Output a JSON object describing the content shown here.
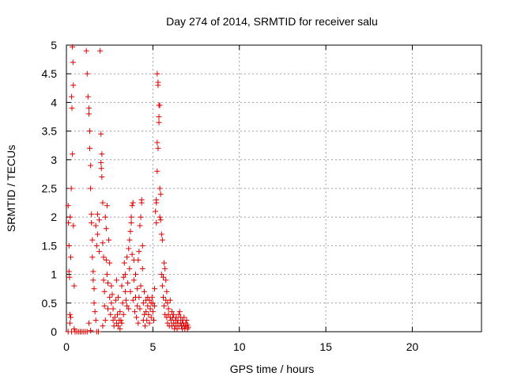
{
  "chart_data": {
    "type": "scatter",
    "title": "Day 274 of 2014, SRMTID for receiver salu",
    "xlabel": "GPS time / hours",
    "ylabel": "SRMTID / TECUs",
    "xlim": [
      0,
      24
    ],
    "ylim": [
      0,
      5
    ],
    "xticks": [
      0,
      5,
      10,
      15,
      20
    ],
    "xtick_labels": [
      "0",
      "5",
      "10",
      "15",
      "20"
    ],
    "yticks": [
      0,
      0.5,
      1,
      1.5,
      2,
      2.5,
      3,
      3.5,
      4,
      4.5,
      5
    ],
    "ytick_labels": [
      "0",
      "0.5",
      "1",
      "1.5",
      "2",
      "2.5",
      "3",
      "3.5",
      "4",
      "4.5",
      "5"
    ],
    "grid": true,
    "marker": "+",
    "series": [
      {
        "name": "salu",
        "color": "#e00000",
        "points": [
          [
            0.1,
            2.2
          ],
          [
            0.12,
            1.9
          ],
          [
            0.15,
            1.5
          ],
          [
            0.15,
            1.05
          ],
          [
            0.18,
            0.95
          ],
          [
            0.2,
            0.3
          ],
          [
            0.2,
            0.15
          ],
          [
            0.22,
            2.0
          ],
          [
            0.25,
            1.3
          ],
          [
            0.25,
            0.25
          ],
          [
            0.28,
            2.5
          ],
          [
            0.3,
            4.1
          ],
          [
            0.32,
            3.9
          ],
          [
            0.35,
            4.97
          ],
          [
            0.35,
            3.1
          ],
          [
            0.38,
            4.7
          ],
          [
            0.4,
            4.3
          ],
          [
            0.4,
            1.85
          ],
          [
            0.45,
            0.8
          ],
          [
            0.45,
            0.05
          ],
          [
            0.1,
            0.0
          ],
          [
            0.3,
            0.0
          ],
          [
            0.5,
            0.0
          ],
          [
            0.6,
            0.0
          ],
          [
            0.7,
            0.0
          ],
          [
            0.8,
            0.0
          ],
          [
            0.9,
            0.0
          ],
          [
            1.0,
            0.0
          ],
          [
            1.1,
            0.0
          ],
          [
            1.2,
            0.0
          ],
          [
            1.75,
            0.0
          ],
          [
            1.85,
            0.0
          ],
          [
            1.15,
            4.9
          ],
          [
            1.2,
            4.5
          ],
          [
            1.25,
            4.1
          ],
          [
            1.3,
            3.9
          ],
          [
            1.3,
            3.8
          ],
          [
            1.35,
            3.5
          ],
          [
            1.35,
            3.2
          ],
          [
            1.4,
            2.9
          ],
          [
            1.4,
            2.5
          ],
          [
            1.45,
            2.05
          ],
          [
            1.45,
            1.9
          ],
          [
            1.5,
            1.6
          ],
          [
            1.5,
            1.3
          ],
          [
            1.55,
            1.05
          ],
          [
            1.55,
            0.9
          ],
          [
            1.6,
            0.75
          ],
          [
            1.6,
            0.5
          ],
          [
            1.65,
            0.35
          ],
          [
            1.7,
            0.2
          ],
          [
            1.3,
            0.15
          ],
          [
            1.4,
            0.02
          ],
          [
            1.7,
            1.85
          ],
          [
            1.75,
            1.5
          ],
          [
            1.8,
            1.7
          ],
          [
            1.8,
            2.05
          ],
          [
            1.9,
            1.95
          ],
          [
            1.9,
            1.4
          ],
          [
            1.95,
            4.9
          ],
          [
            2.0,
            3.45
          ],
          [
            2.0,
            2.95
          ],
          [
            2.02,
            2.85
          ],
          [
            2.05,
            2.7
          ],
          [
            2.05,
            3.1
          ],
          [
            2.1,
            2.25
          ],
          [
            2.1,
            1.55
          ],
          [
            2.15,
            1.3
          ],
          [
            2.15,
            0.9
          ],
          [
            2.2,
            0.7
          ],
          [
            2.2,
            0.45
          ],
          [
            2.25,
            0.2
          ],
          [
            2.1,
            0.1
          ],
          [
            2.25,
            2.0
          ],
          [
            2.3,
            1.8
          ],
          [
            2.3,
            1.25
          ],
          [
            2.35,
            2.2
          ],
          [
            2.35,
            1.0
          ],
          [
            2.4,
            0.85
          ],
          [
            2.4,
            0.4
          ],
          [
            2.45,
            1.6
          ],
          [
            2.5,
            1.2
          ],
          [
            2.5,
            0.6
          ],
          [
            2.55,
            0.3
          ],
          [
            2.6,
            0.5
          ],
          [
            2.6,
            0.8
          ],
          [
            2.65,
            0.65
          ],
          [
            2.7,
            0.4
          ],
          [
            2.7,
            0.2
          ],
          [
            2.75,
            0.1
          ],
          [
            2.8,
            0.25
          ],
          [
            2.85,
            0.55
          ],
          [
            2.9,
            0.9
          ],
          [
            2.9,
            0.15
          ],
          [
            2.95,
            0.3
          ],
          [
            3.0,
            0.1
          ],
          [
            3.0,
            0.6
          ],
          [
            3.05,
            0.2
          ],
          [
            3.1,
            0.05
          ],
          [
            3.1,
            0.35
          ],
          [
            3.15,
            0.2
          ],
          [
            3.2,
            0.15
          ],
          [
            3.2,
            0.8
          ],
          [
            3.25,
            0.5
          ],
          [
            3.3,
            0.3
          ],
          [
            3.3,
            0.95
          ],
          [
            3.35,
            1.2
          ],
          [
            3.4,
            0.7
          ],
          [
            3.4,
            1.0
          ],
          [
            3.45,
            0.55
          ],
          [
            3.5,
            1.3
          ],
          [
            3.5,
            0.45
          ],
          [
            3.55,
            0.85
          ],
          [
            3.6,
            1.45
          ],
          [
            3.6,
            0.4
          ],
          [
            3.65,
            1.6
          ],
          [
            3.65,
            1.1
          ],
          [
            3.7,
            1.75
          ],
          [
            3.7,
            0.7
          ],
          [
            3.75,
            2.0
          ],
          [
            3.75,
            1.9
          ],
          [
            3.8,
            2.2
          ],
          [
            3.8,
            1.35
          ],
          [
            3.85,
            2.25
          ],
          [
            3.85,
            0.55
          ],
          [
            3.9,
            1.25
          ],
          [
            3.9,
            0.9
          ],
          [
            3.95,
            0.35
          ],
          [
            4.0,
            0.6
          ],
          [
            4.0,
            1.0
          ],
          [
            4.05,
            0.25
          ],
          [
            4.1,
            0.75
          ],
          [
            4.1,
            0.45
          ],
          [
            4.15,
            1.25
          ],
          [
            4.15,
            0.15
          ],
          [
            4.2,
            1.4
          ],
          [
            4.2,
            0.6
          ],
          [
            4.25,
            1.85
          ],
          [
            4.25,
            0.4
          ],
          [
            4.3,
            2.0
          ],
          [
            4.3,
            0.8
          ],
          [
            4.35,
            2.25
          ],
          [
            4.35,
            2.3
          ],
          [
            4.4,
            1.5
          ],
          [
            4.4,
            1.1
          ],
          [
            4.45,
            0.5
          ],
          [
            4.45,
            0.2
          ],
          [
            4.5,
            0.3
          ],
          [
            4.5,
            0.7
          ],
          [
            4.55,
            0.1
          ],
          [
            4.6,
            0.55
          ],
          [
            4.6,
            0.35
          ],
          [
            4.65,
            0.2
          ],
          [
            4.7,
            0.6
          ],
          [
            4.7,
            0.45
          ],
          [
            4.75,
            0.3
          ],
          [
            4.8,
            0.55
          ],
          [
            4.8,
            0.15
          ],
          [
            4.85,
            0.4
          ],
          [
            4.9,
            0.5
          ],
          [
            4.9,
            0.25
          ],
          [
            4.95,
            0.6
          ],
          [
            5.0,
            0.35
          ],
          [
            5.0,
            0.5
          ],
          [
            5.05,
            0.2
          ],
          [
            5.1,
            0.75
          ],
          [
            5.1,
            0.45
          ],
          [
            5.15,
            2.1
          ],
          [
            5.2,
            2.3
          ],
          [
            5.2,
            2.25
          ],
          [
            5.2,
            1.9
          ],
          [
            5.25,
            2.8
          ],
          [
            5.25,
            3.3
          ],
          [
            5.25,
            4.5
          ],
          [
            5.3,
            4.35
          ],
          [
            5.3,
            4.3
          ],
          [
            5.3,
            3.2
          ],
          [
            5.35,
            3.95
          ],
          [
            5.35,
            3.75
          ],
          [
            5.35,
            3.65
          ],
          [
            5.4,
            3.95
          ],
          [
            5.4,
            2.5
          ],
          [
            5.4,
            2.0
          ],
          [
            5.45,
            2.4
          ],
          [
            5.45,
            1.95
          ],
          [
            5.5,
            1.7
          ],
          [
            5.5,
            1.0
          ],
          [
            5.55,
            0.8
          ],
          [
            5.55,
            1.6
          ],
          [
            5.6,
            0.95
          ],
          [
            5.6,
            0.6
          ],
          [
            5.65,
            1.2
          ],
          [
            5.65,
            0.45
          ],
          [
            5.7,
            1.1
          ],
          [
            5.7,
            0.3
          ],
          [
            5.75,
            0.9
          ],
          [
            5.75,
            0.55
          ],
          [
            5.8,
            0.7
          ],
          [
            5.8,
            0.25
          ],
          [
            5.85,
            0.5
          ],
          [
            5.85,
            0.15
          ],
          [
            5.9,
            0.3
          ],
          [
            5.9,
            0.4
          ],
          [
            5.95,
            0.1
          ],
          [
            6.0,
            0.25
          ],
          [
            6.0,
            0.55
          ],
          [
            6.05,
            0.2
          ],
          [
            6.1,
            0.35
          ],
          [
            6.1,
            0.1
          ],
          [
            6.15,
            0.25
          ],
          [
            6.2,
            0.15
          ],
          [
            6.2,
            0.3
          ],
          [
            6.25,
            0.05
          ],
          [
            6.3,
            0.2
          ],
          [
            6.3,
            0.1
          ],
          [
            6.35,
            0.25
          ],
          [
            6.4,
            0.15
          ],
          [
            6.4,
            0.05
          ],
          [
            6.45,
            0.2
          ],
          [
            6.5,
            0.3
          ],
          [
            6.5,
            0.1
          ],
          [
            6.55,
            0.35
          ],
          [
            6.6,
            0.25
          ],
          [
            6.6,
            0.15
          ],
          [
            6.65,
            0.1
          ],
          [
            6.7,
            0.2
          ],
          [
            6.7,
            0.05
          ],
          [
            6.75,
            0.15
          ],
          [
            6.8,
            0.25
          ],
          [
            6.8,
            0.1
          ],
          [
            6.85,
            0.05
          ],
          [
            6.9,
            0.15
          ],
          [
            6.9,
            0.1
          ],
          [
            6.95,
            0.2
          ],
          [
            7.0,
            0.12
          ],
          [
            7.05,
            0.08
          ],
          [
            7.0,
            0.05
          ]
        ]
      }
    ]
  }
}
